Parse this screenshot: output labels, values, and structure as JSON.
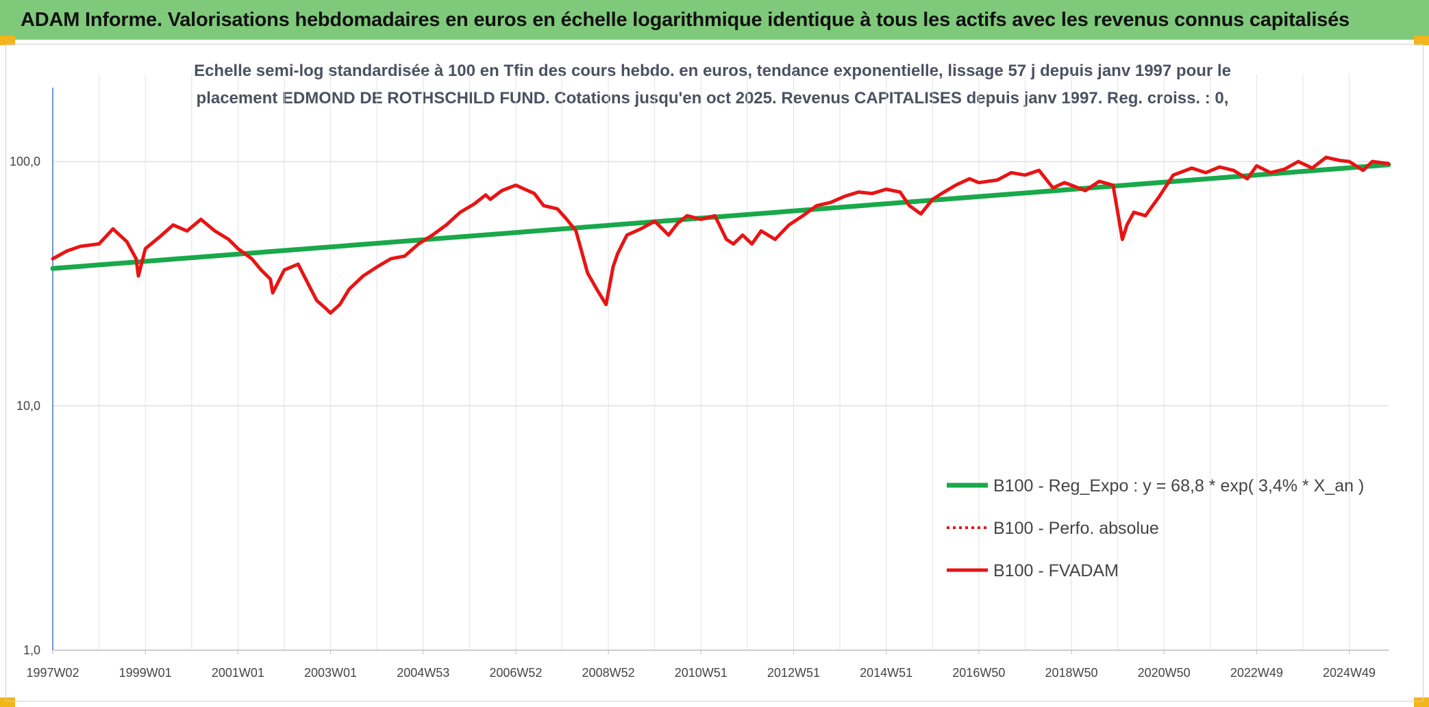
{
  "header": {
    "title": "ADAM Informe. Valorisations hebdomadaires en euros en échelle logarithmique identique à tous les actifs avec les revenus connus capitalisés"
  },
  "colors": {
    "banner": "#7fc97a",
    "corner": "#f2b51c",
    "trend": "#19a84a",
    "series": "#e81414"
  },
  "chart_data": {
    "type": "line",
    "title": "Echelle semi-log standardisée à 100 en Tfin des cours hebdo. en euros, tendance exponentielle, lissage 57 j depuis janv 1997 pour le placement EDMOND DE ROTHSCHILD FUND. Cotations jusqu'en oct 2025. Revenus CAPITALISES depuis janv 1997. Reg. croiss. : 0,",
    "yscale": "log",
    "ylim": [
      1,
      100
    ],
    "yticks": [
      "1,0",
      "10,0",
      "100,0"
    ],
    "xlim": [
      1997.0,
      2025.85
    ],
    "xticks": [
      {
        "label": "1997W02",
        "x": 1997.0
      },
      {
        "label": "1999W01",
        "x": 1999.0
      },
      {
        "label": "2001W01",
        "x": 2001.0
      },
      {
        "label": "2003W01",
        "x": 2003.0
      },
      {
        "label": "2004W53",
        "x": 2005.0
      },
      {
        "label": "2006W52",
        "x": 2007.0
      },
      {
        "label": "2008W52",
        "x": 2009.0
      },
      {
        "label": "2010W51",
        "x": 2011.0
      },
      {
        "label": "2012W51",
        "x": 2013.0
      },
      {
        "label": "2014W51",
        "x": 2015.0
      },
      {
        "label": "2016W50",
        "x": 2017.0
      },
      {
        "label": "2018W50",
        "x": 2019.0
      },
      {
        "label": "2020W50",
        "x": 2021.0
      },
      {
        "label": "2022W49",
        "x": 2023.0
      },
      {
        "label": "2024W49",
        "x": 2025.0
      }
    ],
    "grid": true,
    "legend_position": "bottom-right",
    "series": [
      {
        "name": "B100 - Reg_Expo : y = 68,8 * exp( 3,4% *  X_an )",
        "style": "solid",
        "color": "#19a84a",
        "x": [
          1997.0,
          2025.85
        ],
        "y": [
          36.5,
          97
        ]
      },
      {
        "name": "B100 - Perfo. absolue",
        "style": "dotted",
        "color": "#e81414",
        "x": [],
        "y": []
      },
      {
        "name": "B100 - FVADAM",
        "style": "solid",
        "color": "#e81414",
        "x": [
          1997.0,
          1997.3,
          1997.6,
          1998.0,
          1998.3,
          1998.6,
          1998.8,
          1998.85,
          1999.0,
          1999.3,
          1999.6,
          1999.9,
          2000.2,
          2000.5,
          2000.8,
          2001.0,
          2001.3,
          2001.5,
          2001.7,
          2001.75,
          2002.0,
          2002.3,
          2002.5,
          2002.7,
          2002.9,
          2003.0,
          2003.2,
          2003.4,
          2003.7,
          2004.0,
          2004.3,
          2004.6,
          2004.9,
          2005.2,
          2005.5,
          2005.8,
          2006.1,
          2006.35,
          2006.45,
          2006.7,
          2007.0,
          2007.4,
          2007.6,
          2007.9,
          2008.1,
          2008.3,
          2008.55,
          2008.75,
          2008.95,
          2009.1,
          2009.2,
          2009.4,
          2009.7,
          2010.0,
          2010.3,
          2010.5,
          2010.7,
          2011.0,
          2011.3,
          2011.55,
          2011.7,
          2011.9,
          2012.1,
          2012.3,
          2012.6,
          2012.9,
          2013.2,
          2013.5,
          2013.8,
          2014.1,
          2014.4,
          2014.7,
          2015.0,
          2015.3,
          2015.5,
          2015.75,
          2016.0,
          2016.2,
          2016.5,
          2016.8,
          2017.0,
          2017.4,
          2017.7,
          2018.0,
          2018.3,
          2018.6,
          2018.85,
          2019.0,
          2019.3,
          2019.6,
          2019.9,
          2020.1,
          2020.2,
          2020.35,
          2020.6,
          2020.9,
          2021.2,
          2021.6,
          2021.9,
          2022.2,
          2022.5,
          2022.8,
          2023.0,
          2023.3,
          2023.6,
          2023.9,
          2024.2,
          2024.5,
          2024.8,
          2025.0,
          2025.3,
          2025.5,
          2025.85
        ],
        "y": [
          40,
          43,
          45,
          46,
          53,
          47,
          40,
          34,
          44,
          49,
          55,
          52,
          58,
          52,
          48,
          44,
          40,
          36,
          33,
          29,
          36,
          38,
          32,
          27,
          25,
          24,
          26,
          30,
          34,
          37,
          40,
          41,
          46,
          50,
          55,
          62,
          67,
          73,
          70,
          76,
          80,
          74,
          66,
          64,
          58,
          52,
          35,
          30,
          26,
          37,
          42,
          50,
          53,
          57,
          50,
          56,
          60,
          58,
          60,
          48,
          46,
          50,
          46,
          52,
          48,
          55,
          60,
          66,
          68,
          72,
          75,
          74,
          77,
          75,
          66,
          61,
          70,
          74,
          80,
          85,
          82,
          84,
          90,
          88,
          92,
          78,
          82,
          80,
          76,
          83,
          80,
          48,
          55,
          62,
          60,
          72,
          88,
          94,
          90,
          95,
          92,
          85,
          96,
          90,
          93,
          100,
          94,
          104,
          101,
          100,
          92,
          100,
          98
        ]
      }
    ]
  }
}
